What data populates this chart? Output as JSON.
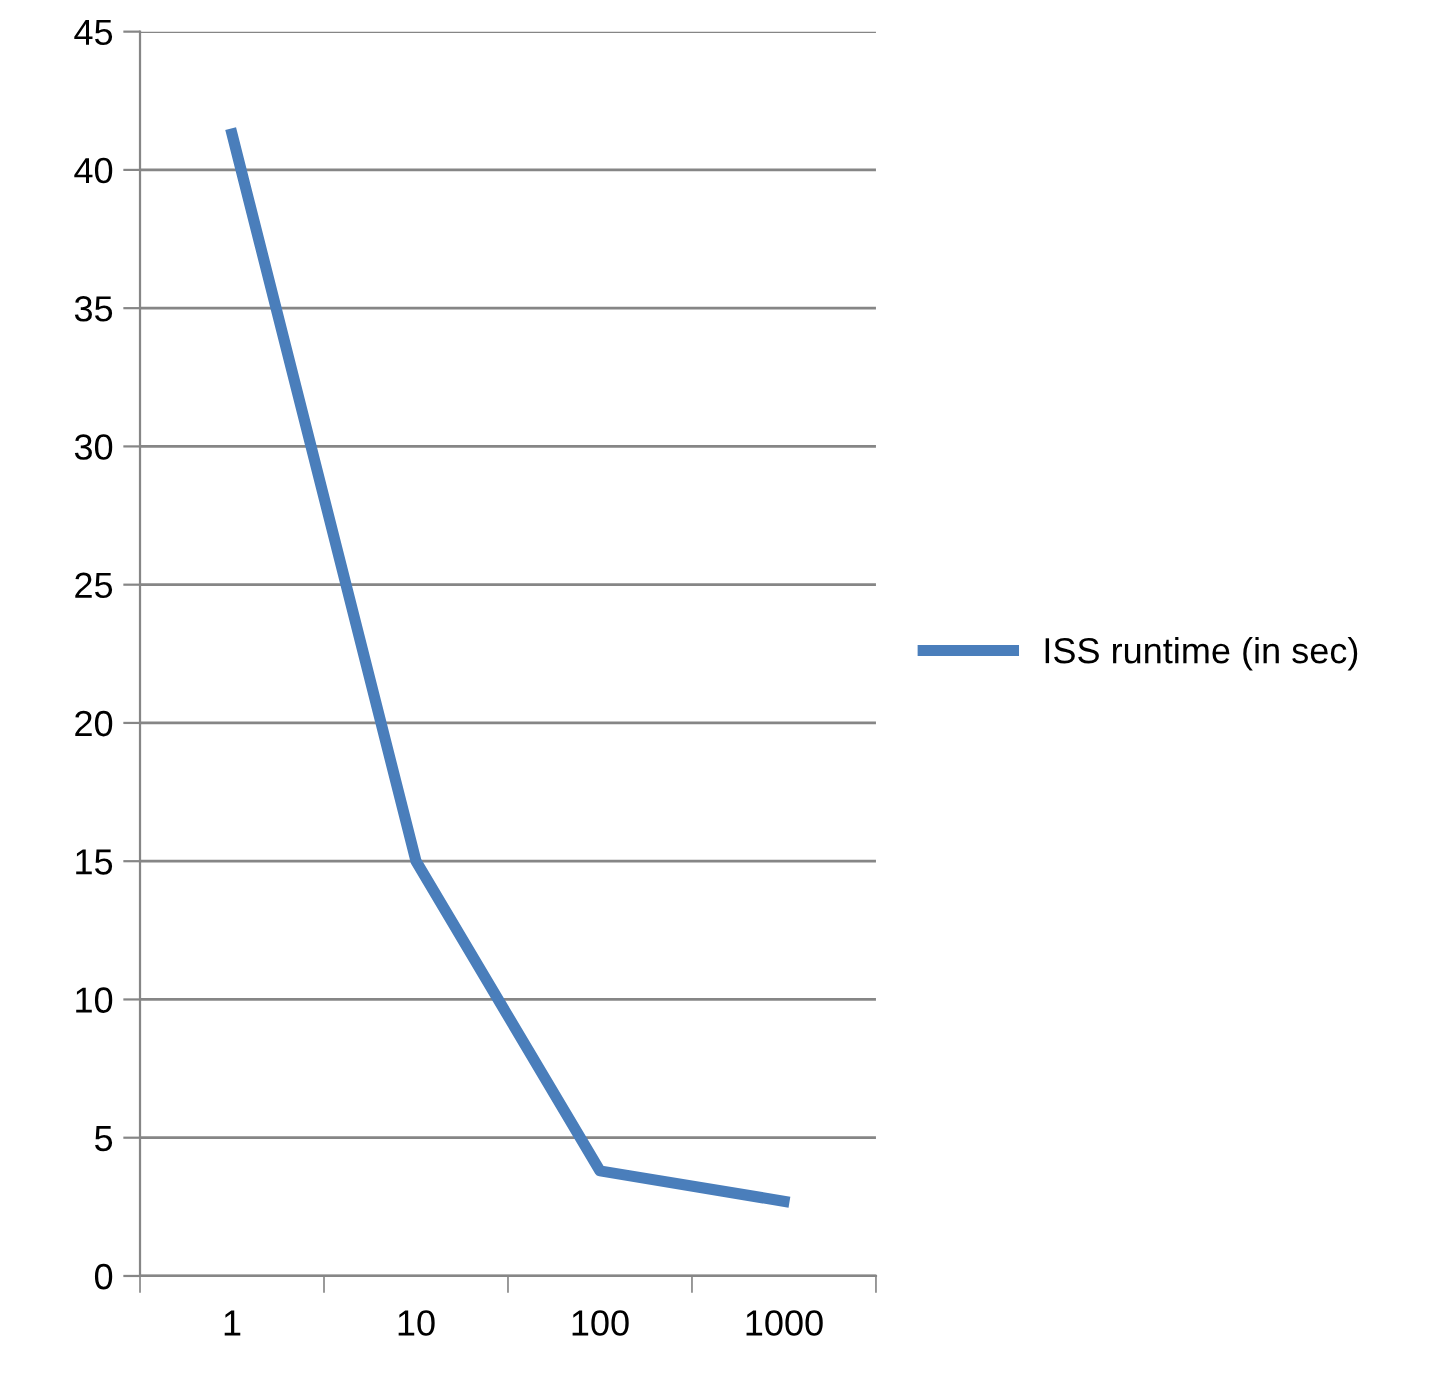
{
  "chart_data": {
    "type": "line",
    "categories": [
      "1",
      "10",
      "100",
      "1000"
    ],
    "series": [
      {
        "name": "ISS runtime (in sec)",
        "color": "#4a7ebb",
        "values": [
          41.3,
          15,
          3.8,
          2.7
        ]
      }
    ],
    "ylim": [
      0,
      45
    ],
    "yticks": [
      0,
      5,
      10,
      15,
      20,
      25,
      30,
      35,
      40,
      45
    ],
    "grid": "y",
    "legend": "right",
    "marker": "none",
    "line_style": "solid"
  }
}
